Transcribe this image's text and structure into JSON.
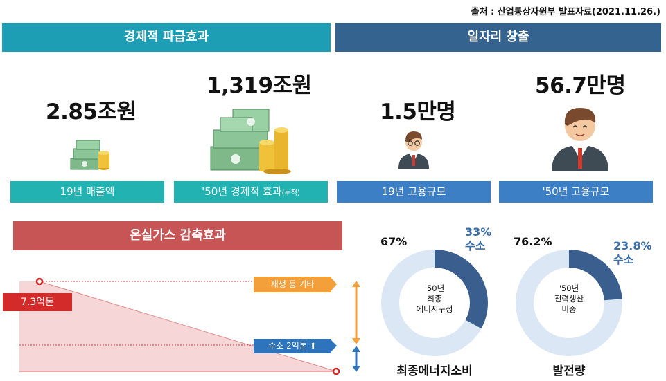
{
  "source": "출처 : 산업통상자원부 발표자료(2021.11.26.)",
  "economic": {
    "banner": "경제적 파급효과",
    "item1_value": "2.85조원",
    "item1_label": "19년 매출액",
    "item2_value": "1,319조원",
    "item2_label": "'50년 경제적 효과",
    "item2_note": "(누적)"
  },
  "jobs": {
    "banner": "일자리 창출",
    "item1_value": "1.5만명",
    "item1_label": "19년 고용규모",
    "item2_value": "56.7만명",
    "item2_label": "'50년 고용규모"
  },
  "ghg": {
    "banner": "온실가스 감축효과",
    "start_value": "7.3억톤",
    "other_label": "재생 등 기타",
    "hydrogen_label": "수소 2억톤 ⬆"
  },
  "donut1": {
    "other_pct": "67%",
    "h2_pct": "33%",
    "h2_name": "수소",
    "center_l1": "'50년",
    "center_l2": "최종",
    "center_l3": "에너지구성",
    "label": "최종에너지소비",
    "h2_fraction": 0.33,
    "color_h2": "#3a5f8f",
    "color_other": "#dbe7f4"
  },
  "donut2": {
    "other_pct": "76.2%",
    "h2_pct": "23.8%",
    "h2_name": "수소",
    "center_l1": "'50년",
    "center_l2": "전력생산",
    "center_l3": "비중",
    "label": "발전량",
    "h2_fraction": 0.238,
    "color_h2": "#3a5f8f",
    "color_other": "#dbe7f4"
  },
  "colors": {
    "teal_banner": "#1e9eb4",
    "navy_banner": "#356390",
    "teal_pill": "#22b2b2",
    "blue_pill": "#3d7fc4",
    "red": "#c75555"
  }
}
